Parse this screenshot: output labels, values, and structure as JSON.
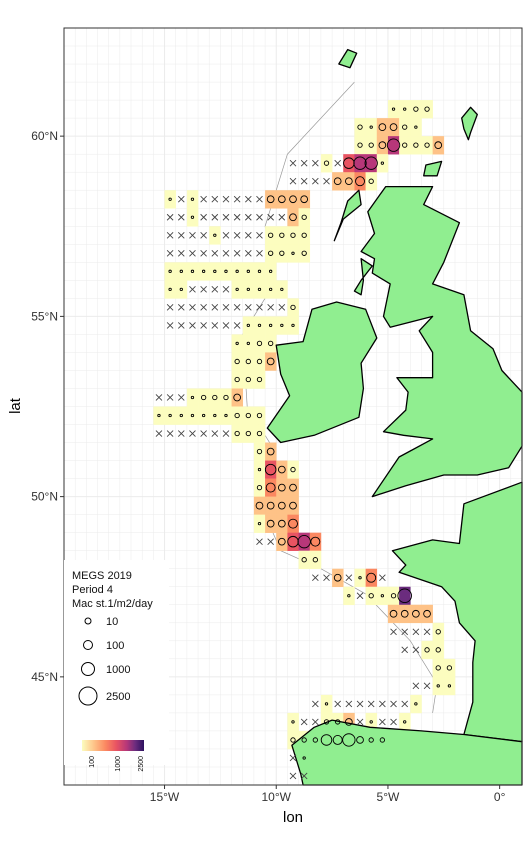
{
  "chart_data": {
    "type": "map",
    "title": "",
    "xlabel": "lon",
    "ylabel": "lat",
    "xlim": [
      -19.5,
      1.0
    ],
    "ylim": [
      42.0,
      63.0
    ],
    "x_ticks": [
      {
        "value": -15,
        "label": "15°W"
      },
      {
        "value": -10,
        "label": "10°W"
      },
      {
        "value": -5,
        "label": "5°W"
      },
      {
        "value": 0,
        "label": "0°"
      }
    ],
    "y_ticks": [
      {
        "value": 45,
        "label": "45°N"
      },
      {
        "value": 50,
        "label": "50°N"
      },
      {
        "value": 55,
        "label": "55°N"
      },
      {
        "value": 60,
        "label": "60°N"
      }
    ],
    "grid": true,
    "legend": {
      "position": "bottom-left",
      "title_lines": [
        "MEGS 2019",
        "Period 4",
        "Mac st.1/m2/day"
      ],
      "size_entries": [
        {
          "value": 10,
          "label": "10"
        },
        {
          "value": 100,
          "label": "100"
        },
        {
          "value": 1000,
          "label": "1000"
        },
        {
          "value": 2500,
          "label": "2500"
        }
      ],
      "colorbar_labels": [
        "100",
        "1000",
        "2500"
      ]
    },
    "colors": {
      "land": "#90ee90",
      "grid": "#ebebeb",
      "ramp": [
        "#fcfdbf",
        "#fec287",
        "#fb8861",
        "#e95462",
        "#b73779",
        "#6b2c7e",
        "#2d1160"
      ]
    },
    "grid_cells": {
      "rows": [
        {
          "lat": 60.75,
          "lon_start": -5.0,
          "codes": "1122"
        },
        {
          "lat": 60.25,
          "lon_start": -6.5,
          "codes": "213321"
        },
        {
          "lat": 59.75,
          "lon_start": -6.5,
          "codes": "22362223"
        },
        {
          "lat": 59.25,
          "lon_start": -9.5,
          "codes": "xxx2x5661"
        },
        {
          "lat": 58.75,
          "lon_start": -9.5,
          "codes": "xxxx3342"
        },
        {
          "lat": 58.25,
          "lon_start": -15.0,
          "codes": "1x1xxxxxx3333"
        },
        {
          "lat": 57.75,
          "lon_start": -15.0,
          "codes": "xx1xxxxxxxx32"
        },
        {
          "lat": 57.25,
          "lon_start": -15.0,
          "codes": "xxxx1xxxx2222"
        },
        {
          "lat": 56.75,
          "lon_start": -15.0,
          "codes": "xxxxxxxxx2212"
        },
        {
          "lat": 56.25,
          "lon_start": -15.0,
          "codes": "1111111111"
        },
        {
          "lat": 55.75,
          "lon_start": -15.0,
          "codes": "11xxxx11111"
        },
        {
          "lat": 55.25,
          "lon_start": -15.0,
          "codes": "xxxxxxxxxxx2"
        },
        {
          "lat": 54.75,
          "lon_start": -15.0,
          "codes": "xxxxxxx11111"
        },
        {
          "lat": 54.25,
          "lon_start": -12.0,
          "codes": "1122"
        },
        {
          "lat": 53.75,
          "lon_start": -12.0,
          "codes": "2223"
        },
        {
          "lat": 53.25,
          "lon_start": -12.0,
          "codes": "222"
        },
        {
          "lat": 52.75,
          "lon_start": -15.5,
          "codes": "xxx12223"
        },
        {
          "lat": 52.25,
          "lon_start": -15.5,
          "codes": "1111111222"
        },
        {
          "lat": 51.75,
          "lon_start": -15.5,
          "codes": "xxxxxxx222"
        },
        {
          "lat": 51.25,
          "lon_start": -11.0,
          "codes": "23"
        },
        {
          "lat": 50.75,
          "lon_start": -11.0,
          "codes": "1532"
        },
        {
          "lat": 50.25,
          "lon_start": -11.0,
          "codes": "2433"
        },
        {
          "lat": 49.75,
          "lon_start": -11.0,
          "codes": "3333"
        },
        {
          "lat": 49.25,
          "lon_start": -11.0,
          "codes": "1334"
        },
        {
          "lat": 48.75,
          "lon_start": -11.0,
          "codes": "xx3564"
        },
        {
          "lat": 48.25,
          "lon_start": -9.0,
          "codes": "22"
        },
        {
          "lat": 47.75,
          "lon_start": -8.5,
          "codes": "xx3x14x"
        },
        {
          "lat": 47.25,
          "lon_start": -7.0,
          "codes": "1x2127"
        },
        {
          "lat": 46.75,
          "lon_start": -5.0,
          "codes": "3333"
        },
        {
          "lat": 46.25,
          "lon_start": -5.0,
          "codes": "xxxx2"
        },
        {
          "lat": 45.75,
          "lon_start": -4.5,
          "codes": "xx22"
        },
        {
          "lat": 45.25,
          "lon_start": -3.0,
          "codes": "22"
        },
        {
          "lat": 44.75,
          "lon_start": -4.0,
          "codes": "xx11"
        },
        {
          "lat": 44.25,
          "lon_start": -8.5,
          "codes": "x1xxxxxxx1"
        },
        {
          "lat": 43.75,
          "lon_start": -9.5,
          "codes": "1xx223x1xx1"
        },
        {
          "lat": 43.25,
          "lon_start": -9.5,
          "codes": "222546322"
        },
        {
          "lat": 42.75,
          "lon_start": -9.5,
          "codes": "x1"
        },
        {
          "lat": 42.25,
          "lon_start": -9.5,
          "codes": "xx"
        }
      ]
    }
  }
}
